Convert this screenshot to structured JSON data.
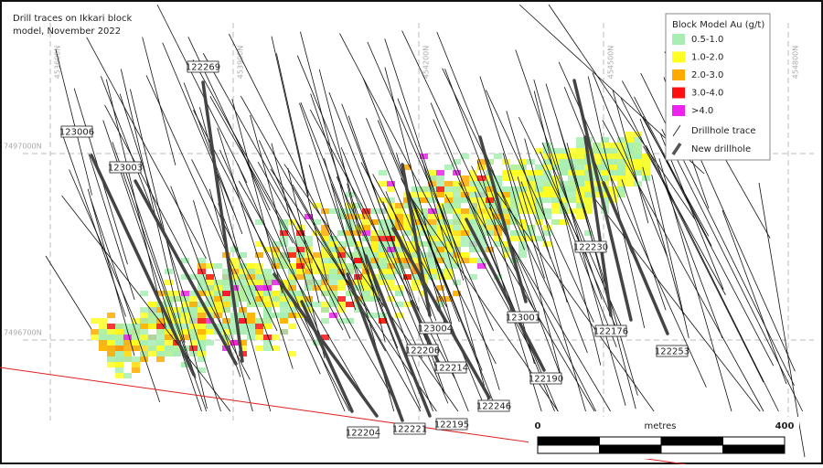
{
  "title_lines": [
    "Drill traces on Ikkari block",
    "model, November 2022"
  ],
  "legend": {
    "title": "Block Model Au (g/t)",
    "items": [
      {
        "label": "0.5-1.0",
        "color": "#a8eeb4"
      },
      {
        "label": "1.0-2.0",
        "color": "#ffff22"
      },
      {
        "label": "2.0-3.0",
        "color": "#ffaa00"
      },
      {
        "label": "3.0-4.0",
        "color": "#ff1010"
      },
      {
        "label": ">4.0",
        "color": "#ee22ee"
      }
    ],
    "lines": [
      "Drillhole trace",
      "New drillhole"
    ]
  },
  "grid": {
    "eastings": [
      "453600N",
      "453900N",
      "454200N",
      "454500N",
      "454800N"
    ],
    "northings": [
      "7497000N",
      "7496700N"
    ]
  },
  "drillholes": [
    "122269",
    "123006",
    "123003",
    "122230",
    "123001",
    "123004",
    "122176",
    "122206",
    "122253",
    "122214",
    "122190",
    "122246",
    "122195",
    "122221",
    "122204"
  ],
  "scale": {
    "start": "0",
    "unit": "metres",
    "end": "400"
  }
}
